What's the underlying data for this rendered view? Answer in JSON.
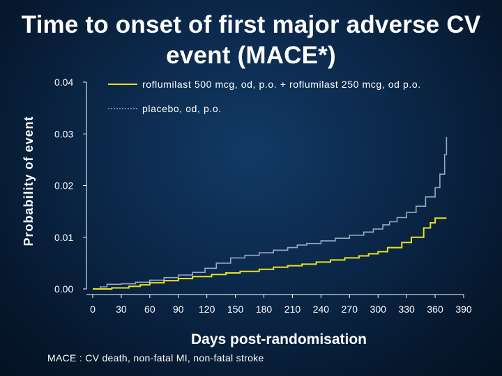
{
  "title_line1": "Time to onset of first major adverse CV",
  "title_line2": "event (MACE*)",
  "footnote": "MACE : CV death, non-fatal MI, non-fatal stroke",
  "colors": {
    "roflumilast": "#e8e31a",
    "placebo": "#98a9c2",
    "axis": "#ffffff"
  },
  "chart_data": {
    "type": "line",
    "step": true,
    "xlabel": "Days post-randomisation",
    "ylabel": "Probability of event",
    "xlim": [
      0,
      390
    ],
    "ylim": [
      0.0,
      0.04
    ],
    "x_ticks": [
      "0",
      "30",
      "60",
      "90",
      "120",
      "150",
      "180",
      "210",
      "240",
      "270",
      "300",
      "330",
      "360",
      "390"
    ],
    "y_ticks": [
      "0.00",
      "0.01",
      "0.02",
      "0.03",
      "0.04"
    ],
    "series": [
      {
        "name": "roflumilast 500 mcg, od, p.o. + roflumilast 250 mcg, od p.o.",
        "style": "solid",
        "points": [
          [
            0,
            0.0
          ],
          [
            20,
            0.0002
          ],
          [
            38,
            0.0005
          ],
          [
            50,
            0.0008
          ],
          [
            60,
            0.0012
          ],
          [
            75,
            0.0016
          ],
          [
            90,
            0.002
          ],
          [
            105,
            0.0024
          ],
          [
            125,
            0.0028
          ],
          [
            140,
            0.0031
          ],
          [
            155,
            0.0034
          ],
          [
            175,
            0.0038
          ],
          [
            190,
            0.0042
          ],
          [
            205,
            0.0045
          ],
          [
            220,
            0.0048
          ],
          [
            235,
            0.0052
          ],
          [
            250,
            0.0056
          ],
          [
            265,
            0.006
          ],
          [
            280,
            0.0064
          ],
          [
            290,
            0.0068
          ],
          [
            300,
            0.0072
          ],
          [
            310,
            0.008
          ],
          [
            325,
            0.009
          ],
          [
            335,
            0.01
          ],
          [
            348,
            0.0118
          ],
          [
            355,
            0.0128
          ],
          [
            360,
            0.0137
          ],
          [
            372,
            0.0137
          ]
        ]
      },
      {
        "name": "placebo, od, p.o.",
        "style": "dashed",
        "points": [
          [
            0,
            0.0
          ],
          [
            8,
            0.0004
          ],
          [
            15,
            0.0009
          ],
          [
            30,
            0.001
          ],
          [
            45,
            0.0013
          ],
          [
            60,
            0.0017
          ],
          [
            75,
            0.0022
          ],
          [
            90,
            0.0027
          ],
          [
            105,
            0.0032
          ],
          [
            118,
            0.004
          ],
          [
            130,
            0.005
          ],
          [
            145,
            0.006
          ],
          [
            160,
            0.0065
          ],
          [
            175,
            0.007
          ],
          [
            190,
            0.0075
          ],
          [
            205,
            0.008
          ],
          [
            215,
            0.0085
          ],
          [
            225,
            0.0088
          ],
          [
            240,
            0.0093
          ],
          [
            255,
            0.0098
          ],
          [
            270,
            0.0104
          ],
          [
            285,
            0.011
          ],
          [
            295,
            0.0116
          ],
          [
            305,
            0.0124
          ],
          [
            312,
            0.013
          ],
          [
            320,
            0.0138
          ],
          [
            330,
            0.0148
          ],
          [
            340,
            0.016
          ],
          [
            350,
            0.0178
          ],
          [
            360,
            0.0196
          ],
          [
            365,
            0.0222
          ],
          [
            370,
            0.026
          ],
          [
            372,
            0.0294
          ]
        ]
      }
    ]
  }
}
